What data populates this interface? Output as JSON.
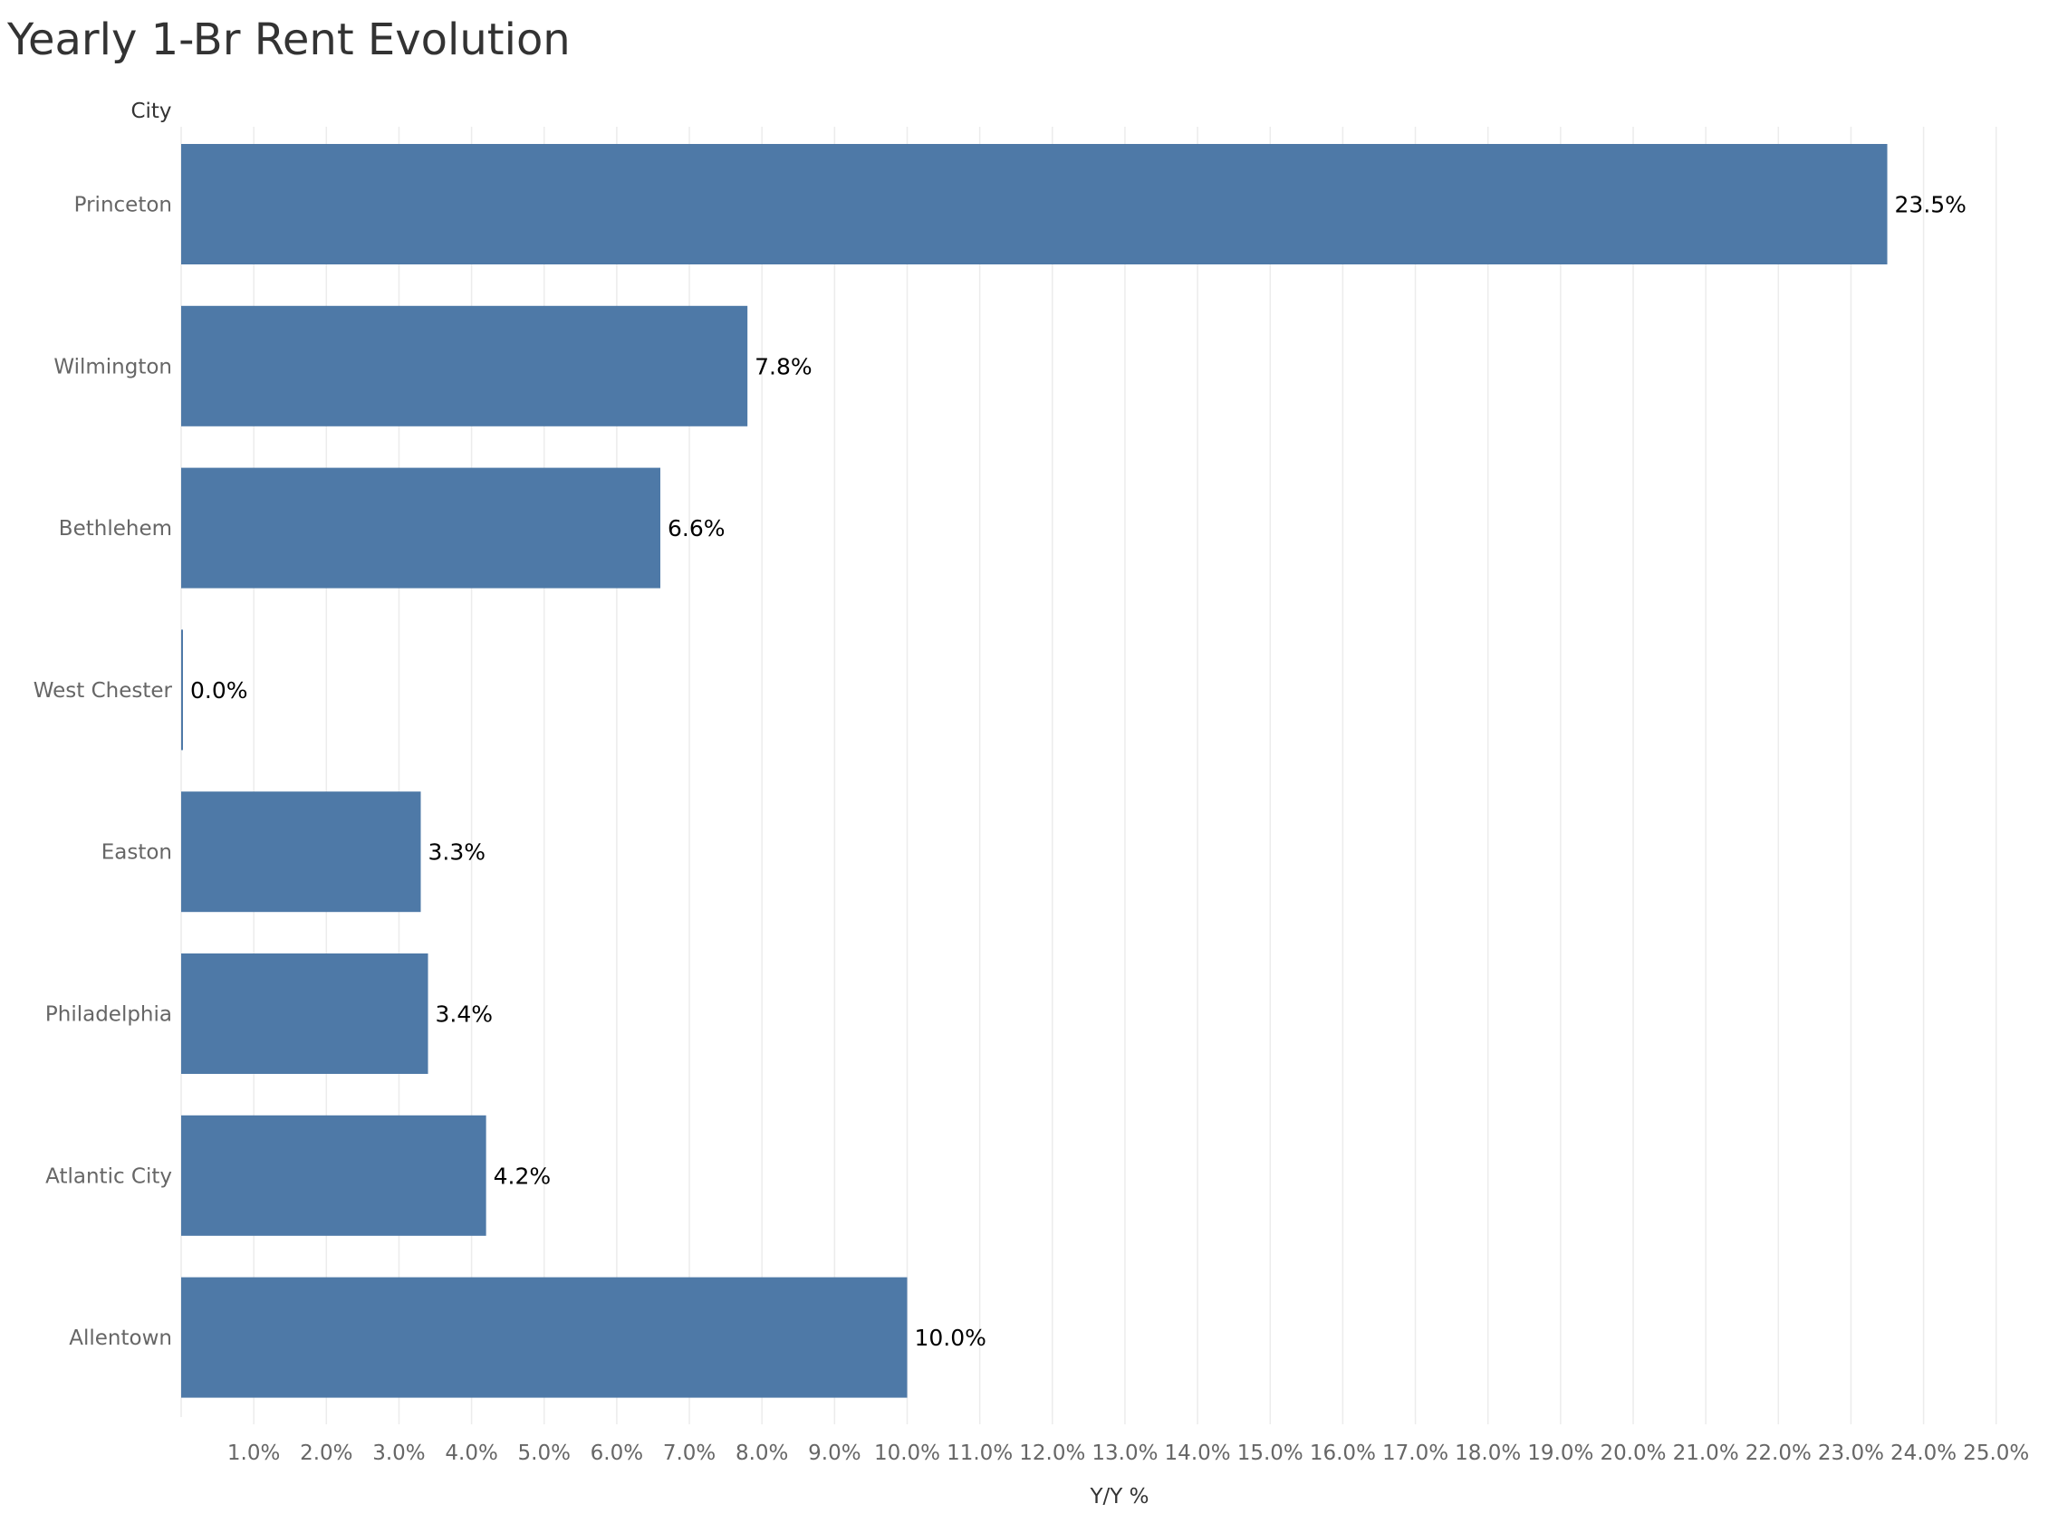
{
  "chart_data": {
    "type": "bar",
    "orientation": "horizontal",
    "title": "Yearly 1-Br Rent Evolution",
    "ylabel": "City",
    "xlabel": "Y/Y %",
    "categories": [
      "Princeton",
      "Wilmington",
      "Bethlehem",
      "West Chester",
      "Easton",
      "Philadelphia",
      "Atlantic City",
      "Allentown"
    ],
    "values": [
      23.5,
      7.8,
      6.6,
      0.0,
      3.3,
      3.4,
      4.2,
      10.0
    ],
    "data_labels": [
      "23.5%",
      "7.8%",
      "6.6%",
      "0.0%",
      "3.3%",
      "3.4%",
      "4.2%",
      "10.0%"
    ],
    "xlim": [
      0,
      25.5
    ],
    "xticks": [
      1,
      2,
      3,
      4,
      5,
      6,
      7,
      8,
      9,
      10,
      11,
      12,
      13,
      14,
      15,
      16,
      17,
      18,
      19,
      20,
      21,
      22,
      23,
      24,
      25
    ],
    "xtick_labels": [
      "1.0%",
      "2.0%",
      "3.0%",
      "4.0%",
      "5.0%",
      "6.0%",
      "7.0%",
      "8.0%",
      "9.0%",
      "10.0%",
      "11.0%",
      "12.0%",
      "13.0%",
      "14.0%",
      "15.0%",
      "16.0%",
      "17.0%",
      "18.0%",
      "19.0%",
      "20.0%",
      "21.0%",
      "22.0%",
      "23.0%",
      "24.0%",
      "25.0%"
    ],
    "grid": true,
    "bar_color": "#4e79a7",
    "grid_color": "#ececec"
  }
}
